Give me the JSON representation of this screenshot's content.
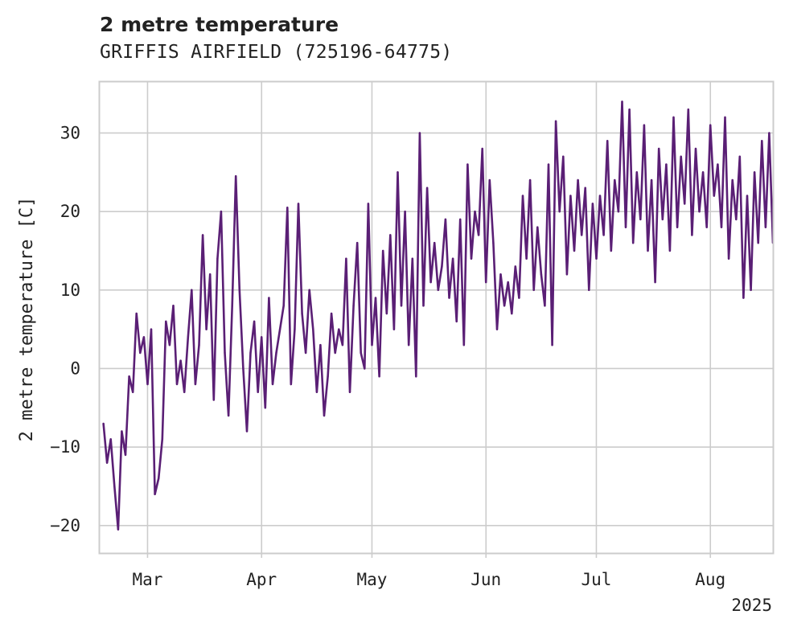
{
  "chart_data": {
    "type": "line",
    "title": "2 metre temperature",
    "subtitle": "GRIFFIS AIRFIELD (725196-64775)",
    "xlabel": "",
    "ylabel": "2 metre temperature [C]",
    "xlim": [
      "2025-02-16",
      "2025-08-18"
    ],
    "ylim": [
      -23.5,
      36.5
    ],
    "year_label": "2025",
    "grid": true,
    "legend": "none",
    "line_color": "#5a1f75",
    "x_ticks": [
      {
        "date": "2025-03-01",
        "label": "Mar"
      },
      {
        "date": "2025-04-01",
        "label": "Apr"
      },
      {
        "date": "2025-05-01",
        "label": "May"
      },
      {
        "date": "2025-06-01",
        "label": "Jun"
      },
      {
        "date": "2025-07-01",
        "label": "Jul"
      },
      {
        "date": "2025-08-01",
        "label": "Aug"
      }
    ],
    "y_ticks": [
      -20,
      -10,
      0,
      10,
      20,
      30
    ],
    "series": [
      {
        "values": [
          [
            "2025-02-17",
            -7
          ],
          [
            "2025-02-18",
            -12
          ],
          [
            "2025-02-19",
            -9
          ],
          [
            "2025-02-20",
            -15
          ],
          [
            "2025-02-21",
            -20.5
          ],
          [
            "2025-02-22",
            -8
          ],
          [
            "2025-02-23",
            -11
          ],
          [
            "2025-02-24",
            -1
          ],
          [
            "2025-02-25",
            -3
          ],
          [
            "2025-02-26",
            7
          ],
          [
            "2025-02-27",
            2
          ],
          [
            "2025-02-28",
            4
          ],
          [
            "2025-03-01",
            -2
          ],
          [
            "2025-03-02",
            5
          ],
          [
            "2025-03-03",
            -16
          ],
          [
            "2025-03-04",
            -14
          ],
          [
            "2025-03-05",
            -9
          ],
          [
            "2025-03-06",
            6
          ],
          [
            "2025-03-07",
            3
          ],
          [
            "2025-03-08",
            8
          ],
          [
            "2025-03-09",
            -2
          ],
          [
            "2025-03-10",
            1
          ],
          [
            "2025-03-11",
            -3
          ],
          [
            "2025-03-12",
            4
          ],
          [
            "2025-03-13",
            10
          ],
          [
            "2025-03-14",
            -2
          ],
          [
            "2025-03-15",
            3
          ],
          [
            "2025-03-16",
            17
          ],
          [
            "2025-03-17",
            5
          ],
          [
            "2025-03-18",
            12
          ],
          [
            "2025-03-19",
            -4
          ],
          [
            "2025-03-20",
            14
          ],
          [
            "2025-03-21",
            20
          ],
          [
            "2025-03-22",
            2
          ],
          [
            "2025-03-23",
            -6
          ],
          [
            "2025-03-24",
            8
          ],
          [
            "2025-03-25",
            24.5
          ],
          [
            "2025-03-26",
            10
          ],
          [
            "2025-03-27",
            0
          ],
          [
            "2025-03-28",
            -8
          ],
          [
            "2025-03-29",
            2
          ],
          [
            "2025-03-30",
            6
          ],
          [
            "2025-03-31",
            -3
          ],
          [
            "2025-04-01",
            4
          ],
          [
            "2025-04-02",
            -5
          ],
          [
            "2025-04-03",
            9
          ],
          [
            "2025-04-04",
            -2
          ],
          [
            "2025-04-05",
            2
          ],
          [
            "2025-04-06",
            5
          ],
          [
            "2025-04-07",
            8
          ],
          [
            "2025-04-08",
            20.5
          ],
          [
            "2025-04-09",
            -2
          ],
          [
            "2025-04-10",
            5
          ],
          [
            "2025-04-11",
            21
          ],
          [
            "2025-04-12",
            7
          ],
          [
            "2025-04-13",
            2
          ],
          [
            "2025-04-14",
            10
          ],
          [
            "2025-04-15",
            5
          ],
          [
            "2025-04-16",
            -3
          ],
          [
            "2025-04-17",
            3
          ],
          [
            "2025-04-18",
            -6
          ],
          [
            "2025-04-19",
            -1
          ],
          [
            "2025-04-20",
            7
          ],
          [
            "2025-04-21",
            2
          ],
          [
            "2025-04-22",
            5
          ],
          [
            "2025-04-23",
            3
          ],
          [
            "2025-04-24",
            14
          ],
          [
            "2025-04-25",
            -3
          ],
          [
            "2025-04-26",
            8
          ],
          [
            "2025-04-27",
            16
          ],
          [
            "2025-04-28",
            2
          ],
          [
            "2025-04-29",
            0
          ],
          [
            "2025-04-30",
            21
          ],
          [
            "2025-05-01",
            3
          ],
          [
            "2025-05-02",
            9
          ],
          [
            "2025-05-03",
            -1
          ],
          [
            "2025-05-04",
            15
          ],
          [
            "2025-05-05",
            7
          ],
          [
            "2025-05-06",
            17
          ],
          [
            "2025-05-07",
            5
          ],
          [
            "2025-05-08",
            25
          ],
          [
            "2025-05-09",
            8
          ],
          [
            "2025-05-10",
            20
          ],
          [
            "2025-05-11",
            3
          ],
          [
            "2025-05-12",
            14
          ],
          [
            "2025-05-13",
            -1
          ],
          [
            "2025-05-14",
            30
          ],
          [
            "2025-05-15",
            8
          ],
          [
            "2025-05-16",
            23
          ],
          [
            "2025-05-17",
            11
          ],
          [
            "2025-05-18",
            16
          ],
          [
            "2025-05-19",
            10
          ],
          [
            "2025-05-20",
            13
          ],
          [
            "2025-05-21",
            19
          ],
          [
            "2025-05-22",
            9
          ],
          [
            "2025-05-23",
            14
          ],
          [
            "2025-05-24",
            6
          ],
          [
            "2025-05-25",
            19
          ],
          [
            "2025-05-26",
            3
          ],
          [
            "2025-05-27",
            26
          ],
          [
            "2025-05-28",
            14
          ],
          [
            "2025-05-29",
            20
          ],
          [
            "2025-05-30",
            17
          ],
          [
            "2025-05-31",
            28
          ],
          [
            "2025-06-01",
            11
          ],
          [
            "2025-06-02",
            24
          ],
          [
            "2025-06-03",
            16
          ],
          [
            "2025-06-04",
            5
          ],
          [
            "2025-06-05",
            12
          ],
          [
            "2025-06-06",
            8
          ],
          [
            "2025-06-07",
            11
          ],
          [
            "2025-06-08",
            7
          ],
          [
            "2025-06-09",
            13
          ],
          [
            "2025-06-10",
            9
          ],
          [
            "2025-06-11",
            22
          ],
          [
            "2025-06-12",
            14
          ],
          [
            "2025-06-13",
            24
          ],
          [
            "2025-06-14",
            10
          ],
          [
            "2025-06-15",
            18
          ],
          [
            "2025-06-16",
            12
          ],
          [
            "2025-06-17",
            8
          ],
          [
            "2025-06-18",
            26
          ],
          [
            "2025-06-19",
            3
          ],
          [
            "2025-06-20",
            31.5
          ],
          [
            "2025-06-21",
            20
          ],
          [
            "2025-06-22",
            27
          ],
          [
            "2025-06-23",
            12
          ],
          [
            "2025-06-24",
            22
          ],
          [
            "2025-06-25",
            15
          ],
          [
            "2025-06-26",
            24
          ],
          [
            "2025-06-27",
            17
          ],
          [
            "2025-06-28",
            23
          ],
          [
            "2025-06-29",
            10
          ],
          [
            "2025-06-30",
            21
          ],
          [
            "2025-07-01",
            14
          ],
          [
            "2025-07-02",
            22
          ],
          [
            "2025-07-03",
            17
          ],
          [
            "2025-07-04",
            29
          ],
          [
            "2025-07-05",
            15
          ],
          [
            "2025-07-06",
            24
          ],
          [
            "2025-07-07",
            20
          ],
          [
            "2025-07-08",
            34
          ],
          [
            "2025-07-09",
            18
          ],
          [
            "2025-07-10",
            33
          ],
          [
            "2025-07-11",
            16
          ],
          [
            "2025-07-12",
            25
          ],
          [
            "2025-07-13",
            19
          ],
          [
            "2025-07-14",
            31
          ],
          [
            "2025-07-15",
            15
          ],
          [
            "2025-07-16",
            24
          ],
          [
            "2025-07-17",
            11
          ],
          [
            "2025-07-18",
            28
          ],
          [
            "2025-07-19",
            19
          ],
          [
            "2025-07-20",
            26
          ],
          [
            "2025-07-21",
            15
          ],
          [
            "2025-07-22",
            32
          ],
          [
            "2025-07-23",
            18
          ],
          [
            "2025-07-24",
            27
          ],
          [
            "2025-07-25",
            21
          ],
          [
            "2025-07-26",
            33
          ],
          [
            "2025-07-27",
            17
          ],
          [
            "2025-07-28",
            28
          ],
          [
            "2025-07-29",
            20
          ],
          [
            "2025-07-30",
            25
          ],
          [
            "2025-07-31",
            18
          ],
          [
            "2025-08-01",
            31
          ],
          [
            "2025-08-02",
            22
          ],
          [
            "2025-08-03",
            26
          ],
          [
            "2025-08-04",
            18
          ],
          [
            "2025-08-05",
            32
          ],
          [
            "2025-08-06",
            14
          ],
          [
            "2025-08-07",
            24
          ],
          [
            "2025-08-08",
            19
          ],
          [
            "2025-08-09",
            27
          ],
          [
            "2025-08-10",
            9
          ],
          [
            "2025-08-11",
            22
          ],
          [
            "2025-08-12",
            10
          ],
          [
            "2025-08-13",
            25
          ],
          [
            "2025-08-14",
            16
          ],
          [
            "2025-08-15",
            29
          ],
          [
            "2025-08-16",
            18
          ],
          [
            "2025-08-17",
            30
          ],
          [
            "2025-08-18",
            16
          ]
        ]
      }
    ]
  }
}
